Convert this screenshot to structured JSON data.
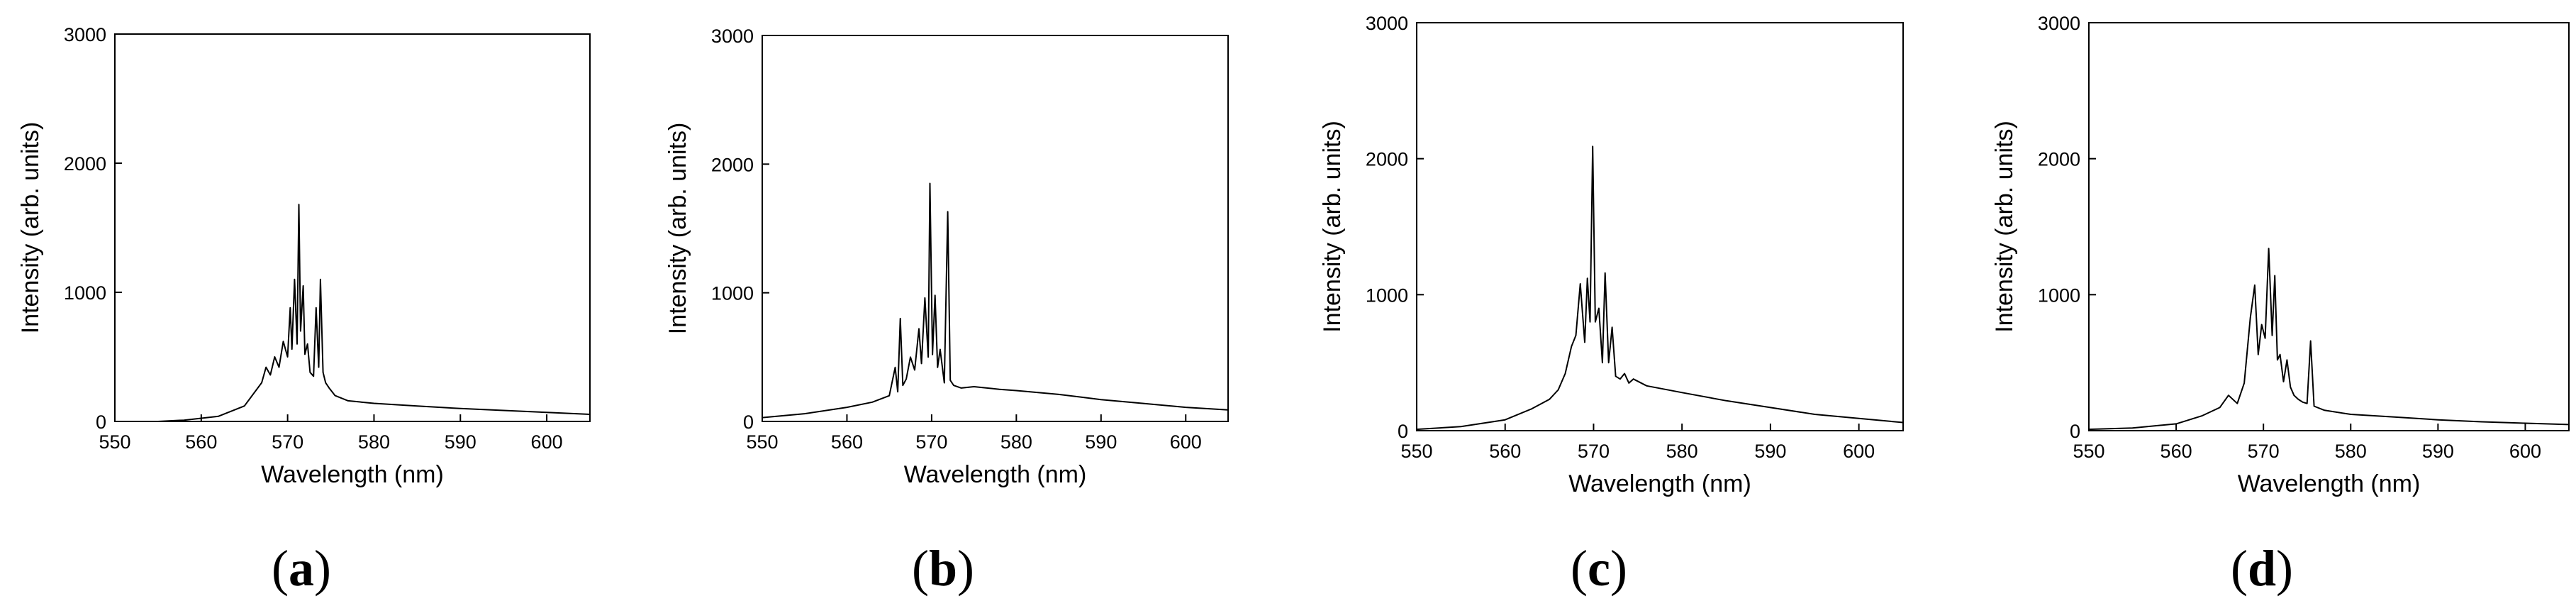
{
  "figure": {
    "panel_count": 4
  },
  "chart_data": [
    {
      "type": "line",
      "panel": "a",
      "label_open": "(",
      "label_letter": "a",
      "label_close": ")",
      "xlabel": "Wavelength (nm)",
      "ylabel": "Intensity (arb. units)",
      "xlim": [
        550,
        605
      ],
      "ylim": [
        0,
        3000
      ],
      "xticks": [
        550,
        560,
        570,
        580,
        590,
        600
      ],
      "yticks": [
        0,
        1000,
        2000,
        3000
      ],
      "grid": false,
      "series": [
        {
          "name": "spectrum",
          "x": [
            555,
            558,
            562,
            565,
            567,
            567.5,
            568,
            568.5,
            569,
            569.5,
            570,
            570.3,
            570.5,
            570.8,
            571.1,
            571.3,
            571.5,
            571.8,
            572,
            572.3,
            572.6,
            573,
            573.3,
            573.6,
            573.8,
            574.1,
            574.4,
            574.8,
            575.5,
            577,
            580,
            585,
            590,
            595,
            600,
            605
          ],
          "values": [
            0,
            10,
            40,
            120,
            300,
            420,
            360,
            500,
            420,
            620,
            500,
            880,
            560,
            1100,
            600,
            1680,
            700,
            1050,
            520,
            600,
            380,
            350,
            880,
            420,
            1100,
            380,
            300,
            260,
            200,
            160,
            140,
            120,
            100,
            85,
            70,
            55
          ]
        }
      ]
    },
    {
      "type": "line",
      "panel": "b",
      "label_open": "(",
      "label_letter": "b",
      "label_close": ")",
      "xlabel": "Wavelength (nm)",
      "ylabel": "Intensity (arb. units)",
      "xlim": [
        550,
        605
      ],
      "ylim": [
        0,
        3000
      ],
      "xticks": [
        550,
        560,
        570,
        580,
        590,
        600
      ],
      "yticks": [
        0,
        1000,
        2000,
        3000
      ],
      "grid": false,
      "series": [
        {
          "name": "spectrum",
          "x": [
            550,
            555,
            560,
            563,
            565,
            565.7,
            566,
            566.3,
            566.6,
            567,
            567.5,
            568,
            568.5,
            568.8,
            569.2,
            569.6,
            569.8,
            570.1,
            570.4,
            570.7,
            571,
            571.5,
            571.9,
            572.2,
            572.6,
            573.5,
            575,
            578,
            580,
            585,
            590,
            595,
            600,
            605
          ],
          "values": [
            30,
            60,
            110,
            150,
            200,
            420,
            230,
            800,
            280,
            330,
            500,
            400,
            720,
            450,
            960,
            500,
            1850,
            520,
            980,
            420,
            560,
            300,
            1630,
            320,
            280,
            260,
            270,
            250,
            240,
            210,
            170,
            140,
            110,
            90
          ]
        }
      ]
    },
    {
      "type": "line",
      "panel": "c",
      "label_open": "(",
      "label_letter": "c",
      "label_close": ")",
      "xlabel": "Wavelength (nm)",
      "ylabel": "Intensity (arb. units)",
      "xlim": [
        550,
        605
      ],
      "ylim": [
        0,
        3000
      ],
      "xticks": [
        550,
        560,
        570,
        580,
        590,
        600
      ],
      "yticks": [
        0,
        1000,
        2000,
        3000
      ],
      "grid": false,
      "series": [
        {
          "name": "spectrum",
          "x": [
            550,
            555,
            560,
            563,
            565,
            566,
            566.8,
            567.5,
            568,
            568.5,
            569,
            569.3,
            569.6,
            569.9,
            570.2,
            570.6,
            571,
            571.3,
            571.7,
            572.1,
            572.5,
            573,
            573.5,
            574,
            574.5,
            576,
            580,
            585,
            590,
            595,
            600,
            605
          ],
          "values": [
            10,
            30,
            80,
            160,
            230,
            300,
            420,
            620,
            700,
            1080,
            650,
            1120,
            800,
            2090,
            800,
            900,
            500,
            1160,
            500,
            760,
            400,
            380,
            420,
            350,
            380,
            330,
            280,
            220,
            170,
            120,
            90,
            60
          ]
        }
      ]
    },
    {
      "type": "line",
      "panel": "d",
      "label_open": "(",
      "label_letter": "d",
      "label_close": ")",
      "xlabel": "Wavelength (nm)",
      "ylabel": "Intensity (arb. units)",
      "xlim": [
        550,
        605
      ],
      "ylim": [
        0,
        3000
      ],
      "xticks": [
        550,
        560,
        570,
        580,
        590,
        600
      ],
      "yticks": [
        0,
        1000,
        2000,
        3000
      ],
      "grid": false,
      "series": [
        {
          "name": "spectrum",
          "x": [
            550,
            555,
            560,
            563,
            565,
            566,
            567,
            567.8,
            568.5,
            569,
            569.4,
            569.8,
            570.2,
            570.6,
            571,
            571.3,
            571.6,
            571.9,
            572.3,
            572.7,
            573.1,
            573.5,
            574,
            574.5,
            575,
            575.4,
            575.8,
            577,
            580,
            585,
            590,
            595,
            600,
            605
          ],
          "values": [
            10,
            20,
            50,
            110,
            170,
            260,
            200,
            350,
            830,
            1070,
            560,
            780,
            680,
            1340,
            700,
            1140,
            520,
            560,
            360,
            520,
            320,
            260,
            230,
            210,
            200,
            660,
            180,
            150,
            120,
            100,
            80,
            65,
            55,
            45
          ]
        }
      ]
    }
  ]
}
